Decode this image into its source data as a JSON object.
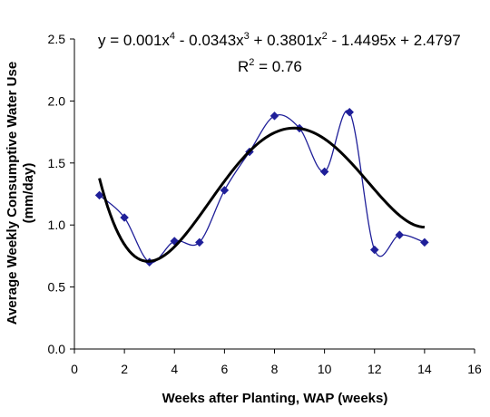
{
  "chart_data": {
    "type": "scatter",
    "title": "",
    "xlabel": "Weeks after Planting, WAP (weeks)",
    "ylabel_line1": "Average Weekly Consumptive Water Use",
    "ylabel_line2": "(mm/day)",
    "xlim": [
      0,
      16
    ],
    "ylim": [
      0,
      2.5
    ],
    "x_ticks": [
      "0",
      "2",
      "4",
      "6",
      "8",
      "10",
      "12",
      "14",
      "16"
    ],
    "y_ticks": [
      "0.0",
      "0.5",
      "1.0",
      "1.5",
      "2.0",
      "2.5"
    ],
    "grid": false,
    "series": [
      {
        "x": [
          1,
          2,
          3,
          4,
          5,
          6,
          7,
          8,
          9,
          10,
          11,
          12,
          13,
          14
        ],
        "values": [
          1.24,
          1.06,
          0.7,
          0.87,
          0.86,
          1.28,
          1.59,
          1.88,
          1.78,
          1.43,
          1.91,
          0.8,
          0.92,
          0.86
        ],
        "color": "#1f1f99",
        "marker": "diamond",
        "line": "smooth"
      }
    ],
    "trendline": {
      "type": "polynomial",
      "order": 4,
      "coefficients": [
        0.001,
        -0.0343,
        0.3801,
        -1.4495,
        2.4797
      ],
      "x_range": [
        1,
        14
      ],
      "color": "#000000",
      "equation": {
        "y_eq": "y = 0.001x",
        "e1": "4",
        "t2": " - 0.0343x",
        "e2": "3",
        "t3": " + 0.3801x",
        "e3": "2",
        "t4": " - 1.4495x + 2.4797"
      },
      "r2": {
        "prefix": "R",
        "exp": "2",
        "suffix": " = 0.76"
      }
    }
  }
}
